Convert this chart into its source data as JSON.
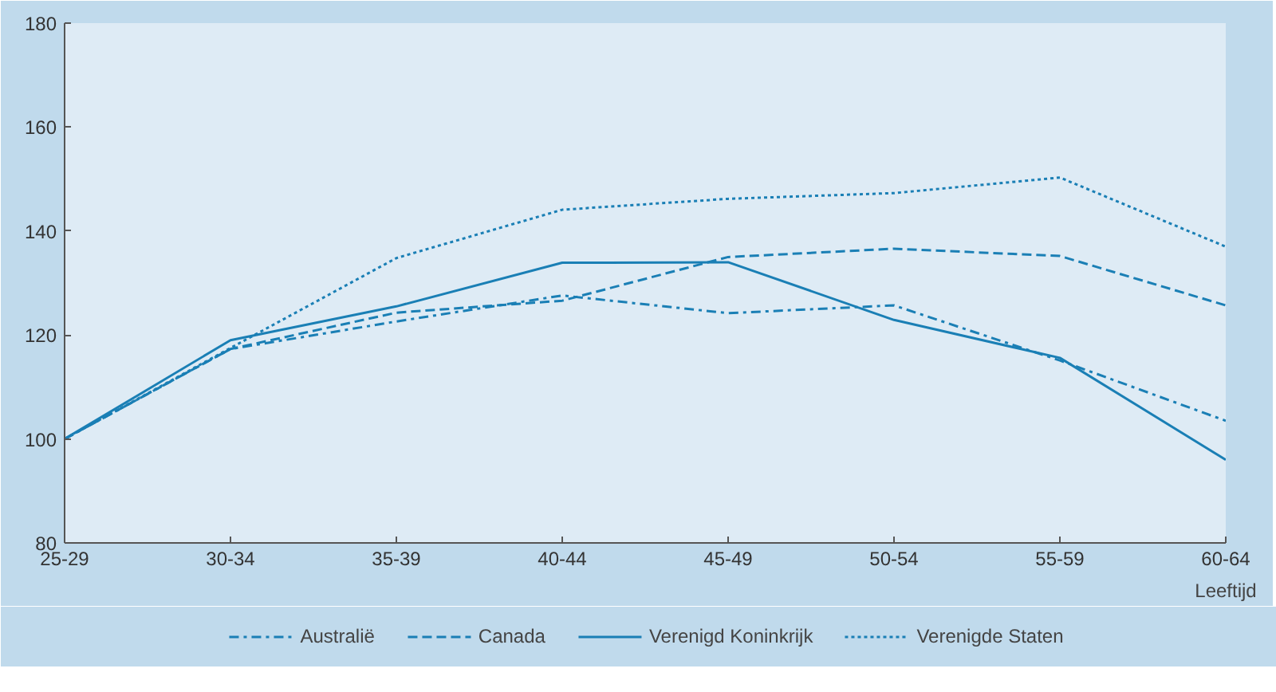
{
  "chart_data": {
    "type": "line",
    "xlabel": "Leeftijd",
    "categories": [
      "25-29",
      "30-34",
      "35-39",
      "40-44",
      "45-49",
      "50-54",
      "55-59",
      "60-64"
    ],
    "series": [
      {
        "name": "Australië",
        "color": "#1a7fb5",
        "line_style": "dashdot",
        "values": [
          100,
          117.3,
          122.6,
          127.6,
          124.2,
          125.7,
          115.1,
          103.5
        ]
      },
      {
        "name": "Canada",
        "color": "#1a7fb5",
        "line_style": "dashed",
        "values": [
          100,
          117.3,
          124.3,
          126.6,
          135,
          136.6,
          135.2,
          125.7
        ]
      },
      {
        "name": "Verenigd Koninkrijk",
        "color": "#1a7fb5",
        "line_style": "solid",
        "values": [
          100,
          119,
          125.5,
          133.9,
          134,
          122.9,
          115.6,
          96
        ]
      },
      {
        "name": "Verenigde Staten",
        "color": "#1a7fb5",
        "line_style": "dotted",
        "values": [
          100,
          117.5,
          134.8,
          144.1,
          146.2,
          147.3,
          150.3,
          137
        ]
      }
    ],
    "ylim": [
      80,
      180
    ],
    "yticks": [
      80,
      100,
      120,
      140,
      160,
      180
    ],
    "grid": false,
    "legend": "bottom",
    "marker": "none"
  }
}
